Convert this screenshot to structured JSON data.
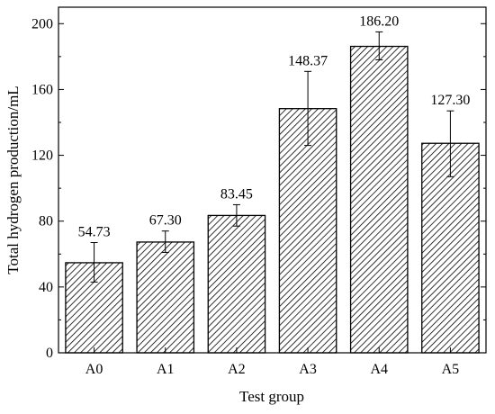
{
  "chart_data": {
    "type": "bar",
    "title": "",
    "xlabel": "Test group",
    "ylabel": "Total hydrogen production/mL",
    "categories": [
      "A0",
      "A1",
      "A2",
      "A3",
      "A4",
      "A5"
    ],
    "values": [
      54.73,
      67.3,
      83.45,
      148.37,
      186.2,
      127.3
    ],
    "value_labels": [
      "54.73",
      "67.30",
      "83.45",
      "148.37",
      "186.20",
      "127.30"
    ],
    "error_low": [
      43,
      61,
      77,
      126,
      178,
      107
    ],
    "error_high": [
      67,
      74,
      90,
      171,
      195,
      147
    ],
    "ylim": [
      0,
      210
    ],
    "yticks": [
      0,
      40,
      80,
      120,
      160,
      200
    ],
    "grid": false,
    "bar_pattern": "diagonal-hatch",
    "colors": {
      "stroke": "#000000",
      "fill": "#ffffff"
    }
  }
}
